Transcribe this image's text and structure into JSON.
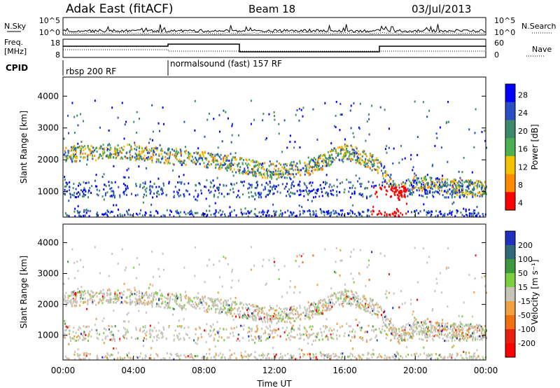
{
  "header": {
    "station": "Adak East (fitACF)",
    "beam": "Beam 18",
    "date": "03/Jul/2013"
  },
  "panels": {
    "noise": {
      "left_label": "N.Sky",
      "right_label": "N.Search",
      "left_ticks": [
        "10^5",
        "10^0"
      ],
      "right_ticks": [
        "10^5",
        "10^0"
      ]
    },
    "freq": {
      "left_label": "Freq.",
      "left_unit": "[MHz]",
      "left_ticks": [
        "18",
        "8"
      ],
      "right_ticks": [
        "60",
        "0"
      ],
      "right_label": "Nave"
    },
    "cpid": {
      "label": "CPID",
      "segments": [
        "rbsp 200 RF",
        "normalsound (fast) 157 RF"
      ]
    }
  },
  "chart_data": [
    {
      "type": "heatmap",
      "name": "power",
      "ylabel": "Slant Range [km]",
      "y_ticks": [
        1000,
        2000,
        3000,
        4000
      ],
      "ylim": [
        200,
        4600
      ],
      "colorbar_label": "Power [dB]",
      "colorbar_ticks": [
        4,
        8,
        12,
        16,
        20,
        24,
        28
      ],
      "colors": [
        "#0000ff",
        "#2a4fc4",
        "#3d8a6a",
        "#4caf50",
        "#f2c200",
        "#ff8c00",
        "#ff0000"
      ]
    },
    {
      "type": "heatmap",
      "name": "velocity",
      "ylabel": "Slant Range [km]",
      "y_ticks": [
        1000,
        2000,
        3000,
        4000
      ],
      "ylim": [
        200,
        4600
      ],
      "colorbar_label": "Velocity [m s⁻¹]",
      "colorbar_ticks": [
        200,
        100,
        50,
        15,
        -15,
        -50,
        -100,
        -200
      ],
      "colors": [
        "#2030c0",
        "#2f6a78",
        "#3c9a3c",
        "#7ad040",
        "#c8c4b8",
        "#f0a040",
        "#f07010",
        "#e82010",
        "#ff0000"
      ]
    }
  ],
  "x_axis": {
    "label": "Time UT",
    "ticks": [
      "00:00",
      "04:00",
      "08:00",
      "12:00",
      "16:00",
      "20:00",
      "00:00"
    ]
  }
}
